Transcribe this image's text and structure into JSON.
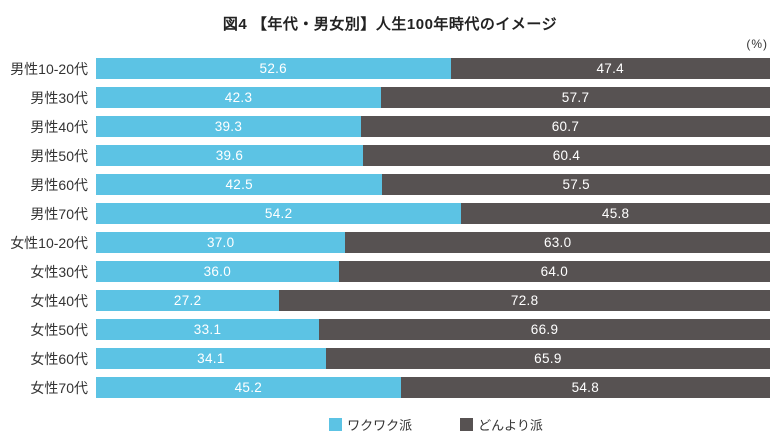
{
  "title": "図4 【年代・男女別】人生100年時代のイメージ",
  "percent_label": "(%)",
  "colors": {
    "wakuwaku": "#5CC3E4",
    "donyori": "#575252",
    "value_text": "#ffffff",
    "label_text": "#333333"
  },
  "legend": {
    "items": [
      {
        "label": "ワクワク派",
        "color_key": "wakuwaku"
      },
      {
        "label": "どんより派",
        "color_key": "donyori"
      }
    ]
  },
  "chart_data": {
    "type": "bar",
    "orientation": "horizontal",
    "stacked": true,
    "xlim": [
      0,
      100
    ],
    "unit": "%",
    "grid": false,
    "legend_position": "bottom-center",
    "categories": [
      "男性10-20代",
      "男性30代",
      "男性40代",
      "男性50代",
      "男性60代",
      "男性70代",
      "女性10-20代",
      "女性30代",
      "女性40代",
      "女性50代",
      "女性60代",
      "女性70代"
    ],
    "series": [
      {
        "name": "ワクワク派",
        "color_key": "wakuwaku",
        "values": [
          52.6,
          42.3,
          39.3,
          39.6,
          42.5,
          54.2,
          37.0,
          36.0,
          27.2,
          33.1,
          34.1,
          45.2
        ]
      },
      {
        "name": "どんより派",
        "color_key": "donyori",
        "values": [
          47.4,
          57.7,
          60.7,
          60.4,
          57.5,
          45.8,
          63.0,
          64.0,
          72.8,
          66.9,
          65.9,
          54.8
        ]
      }
    ]
  }
}
